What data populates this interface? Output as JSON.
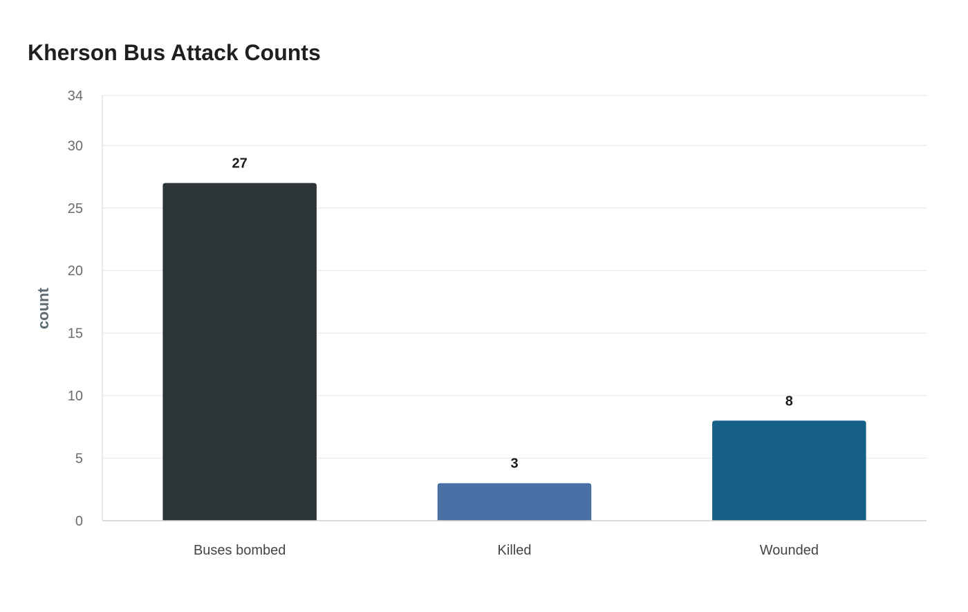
{
  "chart_data": {
    "type": "bar",
    "title": "Kherson Bus Attack Counts",
    "xlabel": "",
    "ylabel": "count",
    "categories": [
      "Buses bombed",
      "Killed",
      "Wounded"
    ],
    "values": [
      27,
      3,
      8
    ],
    "data_labels": [
      "27",
      "3",
      "8"
    ],
    "colors": [
      "#2e3538",
      "#4a6fa5",
      "#166088"
    ],
    "ylim": [
      0,
      34
    ],
    "yticks": [
      0,
      5,
      10,
      15,
      20,
      25,
      30,
      34
    ],
    "grid": true,
    "legend": "none"
  }
}
